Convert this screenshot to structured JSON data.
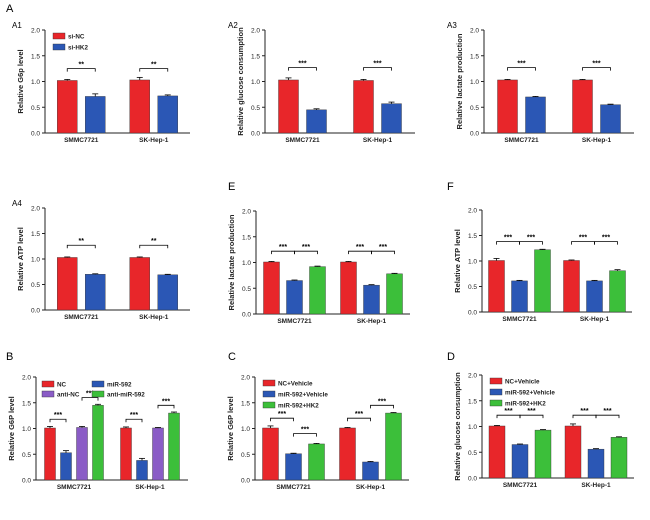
{
  "figure": {
    "panel_letters": [
      "A",
      "A1",
      "A2",
      "A3",
      "A4",
      "B",
      "C",
      "D",
      "E",
      "F"
    ]
  },
  "colors": {
    "red": "#e8262a",
    "blue": "#2b57b5",
    "green": "#3cbf3a",
    "purple": "#8a5cc6",
    "axis": "#222222"
  },
  "chart_data": [
    {
      "panel_id": "A1",
      "type": "bar",
      "title": "",
      "xlabel": "",
      "ylabel": "Relative G6p level",
      "categories": [
        "SMMC7721",
        "SK-Hep-1"
      ],
      "ylim": [
        0,
        2.0
      ],
      "yticks": [
        "0.0",
        "0.5",
        "1.0",
        "1.5",
        "2.0"
      ],
      "series": [
        {
          "name": "si-NC",
          "color": "#e8262a",
          "values": [
            1.02,
            1.03
          ],
          "errors": [
            0.02,
            0.05
          ]
        },
        {
          "name": "si-HK2",
          "color": "#2b57b5",
          "values": [
            0.71,
            0.72
          ],
          "errors": [
            0.05,
            0.02
          ]
        }
      ],
      "legend": [
        "si-NC",
        "si-HK2"
      ],
      "legend_position": "top-left",
      "significance": [
        {
          "category": 0,
          "from": 0,
          "to": 1,
          "label": "**",
          "y": 1.25
        },
        {
          "category": 1,
          "from": 0,
          "to": 1,
          "label": "**",
          "y": 1.25
        }
      ]
    },
    {
      "panel_id": "A2",
      "type": "bar",
      "title": "",
      "xlabel": "",
      "ylabel": "Relative glucose consumption",
      "categories": [
        "SMMC7721",
        "SK-Hep-1"
      ],
      "ylim": [
        0,
        2.0
      ],
      "yticks": [
        "0.0",
        "0.5",
        "1.0",
        "1.5",
        "2.0"
      ],
      "series": [
        {
          "name": "si-NC",
          "color": "#e8262a",
          "values": [
            1.03,
            1.02
          ],
          "errors": [
            0.04,
            0.02
          ]
        },
        {
          "name": "si-HK2",
          "color": "#2b57b5",
          "values": [
            0.45,
            0.57
          ],
          "errors": [
            0.02,
            0.03
          ]
        }
      ],
      "legend": [],
      "legend_position": "none",
      "significance": [
        {
          "category": 0,
          "from": 0,
          "to": 1,
          "label": "***",
          "y": 1.27
        },
        {
          "category": 1,
          "from": 0,
          "to": 1,
          "label": "***",
          "y": 1.27
        }
      ]
    },
    {
      "panel_id": "A3",
      "type": "bar",
      "title": "",
      "xlabel": "",
      "ylabel": "Relative lactate production",
      "categories": [
        "SMMC7721",
        "SK-Hep-1"
      ],
      "ylim": [
        0,
        2.0
      ],
      "yticks": [
        "0.0",
        "0.5",
        "1.0",
        "1.5",
        "2.0"
      ],
      "series": [
        {
          "name": "si-NC",
          "color": "#e8262a",
          "values": [
            1.03,
            1.03
          ],
          "errors": [
            0.01,
            0.01
          ]
        },
        {
          "name": "si-HK2",
          "color": "#2b57b5",
          "values": [
            0.7,
            0.55
          ],
          "errors": [
            0.01,
            0.01
          ]
        }
      ],
      "legend": [],
      "legend_position": "none",
      "significance": [
        {
          "category": 0,
          "from": 0,
          "to": 1,
          "label": "***",
          "y": 1.27
        },
        {
          "category": 1,
          "from": 0,
          "to": 1,
          "label": "***",
          "y": 1.27
        }
      ]
    },
    {
      "panel_id": "A4",
      "type": "bar",
      "title": "",
      "xlabel": "",
      "ylabel": "Relative ATP level",
      "categories": [
        "SMMC7721",
        "SK-Hep-1"
      ],
      "ylim": [
        0,
        2.0
      ],
      "yticks": [
        "0.0",
        "0.5",
        "1.0",
        "1.5",
        "2.0"
      ],
      "series": [
        {
          "name": "si-NC",
          "color": "#e8262a",
          "values": [
            1.03,
            1.03
          ],
          "errors": [
            0.01,
            0.01
          ]
        },
        {
          "name": "si-HK2",
          "color": "#2b57b5",
          "values": [
            0.7,
            0.69
          ],
          "errors": [
            0.01,
            0.01
          ]
        }
      ],
      "legend": [],
      "legend_position": "none",
      "significance": [
        {
          "category": 0,
          "from": 0,
          "to": 1,
          "label": "**",
          "y": 1.27
        },
        {
          "category": 1,
          "from": 0,
          "to": 1,
          "label": "**",
          "y": 1.27
        }
      ]
    },
    {
      "panel_id": "E",
      "type": "bar",
      "title": "",
      "xlabel": "",
      "ylabel": "Relative lactate production",
      "categories": [
        "SMMC7721",
        "SK-Hep-1"
      ],
      "ylim": [
        0,
        2.0
      ],
      "yticks": [
        "0.0",
        "0.5",
        "1.0",
        "1.5",
        "2.0"
      ],
      "series": [
        {
          "name": "NC+Vehicle",
          "color": "#e8262a",
          "values": [
            1.01,
            1.01
          ],
          "errors": [
            0.01,
            0.01
          ]
        },
        {
          "name": "miR-592+Vehicle",
          "color": "#2b57b5",
          "values": [
            0.65,
            0.56
          ],
          "errors": [
            0.01,
            0.01
          ]
        },
        {
          "name": "miR-592+HK2",
          "color": "#3cbf3a",
          "values": [
            0.92,
            0.78
          ],
          "errors": [
            0.01,
            0.01
          ]
        }
      ],
      "legend": [],
      "legend_position": "none",
      "significance": [
        {
          "category": 0,
          "from": 0,
          "to": 1,
          "label": "***",
          "y": 1.22
        },
        {
          "category": 0,
          "from": 1,
          "to": 2,
          "label": "***",
          "y": 1.22
        },
        {
          "category": 1,
          "from": 0,
          "to": 1,
          "label": "***",
          "y": 1.22
        },
        {
          "category": 1,
          "from": 1,
          "to": 2,
          "label": "***",
          "y": 1.22
        }
      ]
    },
    {
      "panel_id": "F",
      "type": "bar",
      "title": "",
      "xlabel": "",
      "ylabel": "Relative ATP level",
      "categories": [
        "SMMC7721",
        "SK-Hep-1"
      ],
      "ylim": [
        0,
        2.0
      ],
      "yticks": [
        "0.0",
        "0.5",
        "1.0",
        "1.5",
        "2.0"
      ],
      "series": [
        {
          "name": "NC+Vehicle",
          "color": "#e8262a",
          "values": [
            1.01,
            1.01
          ],
          "errors": [
            0.04,
            0.01
          ]
        },
        {
          "name": "miR-592+Vehicle",
          "color": "#2b57b5",
          "values": [
            0.61,
            0.61
          ],
          "errors": [
            0.01,
            0.01
          ]
        },
        {
          "name": "miR-592+HK2",
          "color": "#3cbf3a",
          "values": [
            1.22,
            0.81
          ],
          "errors": [
            0.01,
            0.02
          ]
        }
      ],
      "legend": [],
      "legend_position": "none",
      "significance": [
        {
          "category": 0,
          "from": 0,
          "to": 1,
          "label": "***",
          "y": 1.38
        },
        {
          "category": 0,
          "from": 1,
          "to": 2,
          "label": "***",
          "y": 1.38
        },
        {
          "category": 1,
          "from": 0,
          "to": 1,
          "label": "***",
          "y": 1.38
        },
        {
          "category": 1,
          "from": 1,
          "to": 2,
          "label": "***",
          "y": 1.38
        }
      ]
    },
    {
      "panel_id": "B",
      "type": "bar",
      "title": "",
      "xlabel": "",
      "ylabel": "Relative G6P level",
      "categories": [
        "SMMC7721",
        "SK-Hep-1"
      ],
      "ylim": [
        0,
        2.0
      ],
      "yticks": [
        "0.0",
        "0.5",
        "1.0",
        "1.5",
        "2.0"
      ],
      "series": [
        {
          "name": "NC",
          "color": "#e8262a",
          "values": [
            1.01,
            1.01
          ],
          "errors": [
            0.03,
            0.02
          ]
        },
        {
          "name": "miR-592",
          "color": "#2b57b5",
          "values": [
            0.53,
            0.38
          ],
          "errors": [
            0.04,
            0.04
          ]
        },
        {
          "name": "anti-NC",
          "color": "#8a5cc6",
          "values": [
            1.02,
            1.01
          ],
          "errors": [
            0.02,
            0.01
          ]
        },
        {
          "name": "anti-miR-592",
          "color": "#3cbf3a",
          "values": [
            1.45,
            1.3
          ],
          "errors": [
            0.02,
            0.02
          ]
        }
      ],
      "legend": [
        "NC",
        "miR-592",
        "anti-NC",
        "anti-miR-592"
      ],
      "legend_position": "top-left",
      "significance": [
        {
          "category": 0,
          "from": 0,
          "to": 1,
          "label": "***",
          "y": 1.18
        },
        {
          "category": 0,
          "from": 2,
          "to": 3,
          "label": "***",
          "y": 1.6
        },
        {
          "category": 1,
          "from": 0,
          "to": 1,
          "label": "***",
          "y": 1.18
        },
        {
          "category": 1,
          "from": 2,
          "to": 3,
          "label": "***",
          "y": 1.45
        }
      ]
    },
    {
      "panel_id": "C",
      "type": "bar",
      "title": "",
      "xlabel": "",
      "ylabel": "Relative G6P level",
      "categories": [
        "SMMC7721",
        "SK-Hep-1"
      ],
      "ylim": [
        0,
        2.0
      ],
      "yticks": [
        "0.0",
        "0.5",
        "1.0",
        "1.5",
        "2.0"
      ],
      "series": [
        {
          "name": "NC+Vehicle",
          "color": "#e8262a",
          "values": [
            1.01,
            1.01
          ],
          "errors": [
            0.04,
            0.01
          ]
        },
        {
          "name": "miR-592+Vehicle",
          "color": "#2b57b5",
          "values": [
            0.51,
            0.35
          ],
          "errors": [
            0.01,
            0.01
          ]
        },
        {
          "name": "miR-592+HK2",
          "color": "#3cbf3a",
          "values": [
            0.7,
            1.3
          ],
          "errors": [
            0.01,
            0.01
          ]
        }
      ],
      "legend": [
        "NC+Vehicle",
        "miR-592+Vehicle",
        "miR-592+HK2"
      ],
      "legend_position": "top-left",
      "significance": [
        {
          "category": 0,
          "from": 0,
          "to": 1,
          "label": "***",
          "y": 1.2
        },
        {
          "category": 0,
          "from": 1,
          "to": 2,
          "label": "***",
          "y": 0.9
        },
        {
          "category": 1,
          "from": 0,
          "to": 1,
          "label": "***",
          "y": 1.2
        },
        {
          "category": 1,
          "from": 1,
          "to": 2,
          "label": "***",
          "y": 1.45
        }
      ]
    },
    {
      "panel_id": "D",
      "type": "bar",
      "title": "",
      "xlabel": "",
      "ylabel": "Relative glucose consumption",
      "categories": [
        "SMMC7721",
        "SK-Hep-1"
      ],
      "ylim": [
        0,
        2.0
      ],
      "yticks": [
        "0.0",
        "0.5",
        "1.0",
        "1.5",
        "2.0"
      ],
      "series": [
        {
          "name": "NC+Vehicle",
          "color": "#e8262a",
          "values": [
            1.01,
            1.01
          ],
          "errors": [
            0.01,
            0.04
          ]
        },
        {
          "name": "miR-592+Vehicle",
          "color": "#2b57b5",
          "values": [
            0.65,
            0.56
          ],
          "errors": [
            0.01,
            0.01
          ]
        },
        {
          "name": "miR-592+HK2",
          "color": "#3cbf3a",
          "values": [
            0.93,
            0.79
          ],
          "errors": [
            0.01,
            0.01
          ]
        }
      ],
      "legend": [
        "NC+Vehicle",
        "miR-592+Vehicle",
        "miR-592+HK2"
      ],
      "legend_position": "top-left",
      "significance": [
        {
          "category": 0,
          "from": 0,
          "to": 1,
          "label": "***",
          "y": 1.22
        },
        {
          "category": 0,
          "from": 1,
          "to": 2,
          "label": "***",
          "y": 1.22
        },
        {
          "category": 1,
          "from": 0,
          "to": 1,
          "label": "***",
          "y": 1.22
        },
        {
          "category": 1,
          "from": 1,
          "to": 2,
          "label": "***",
          "y": 1.22
        }
      ]
    }
  ]
}
